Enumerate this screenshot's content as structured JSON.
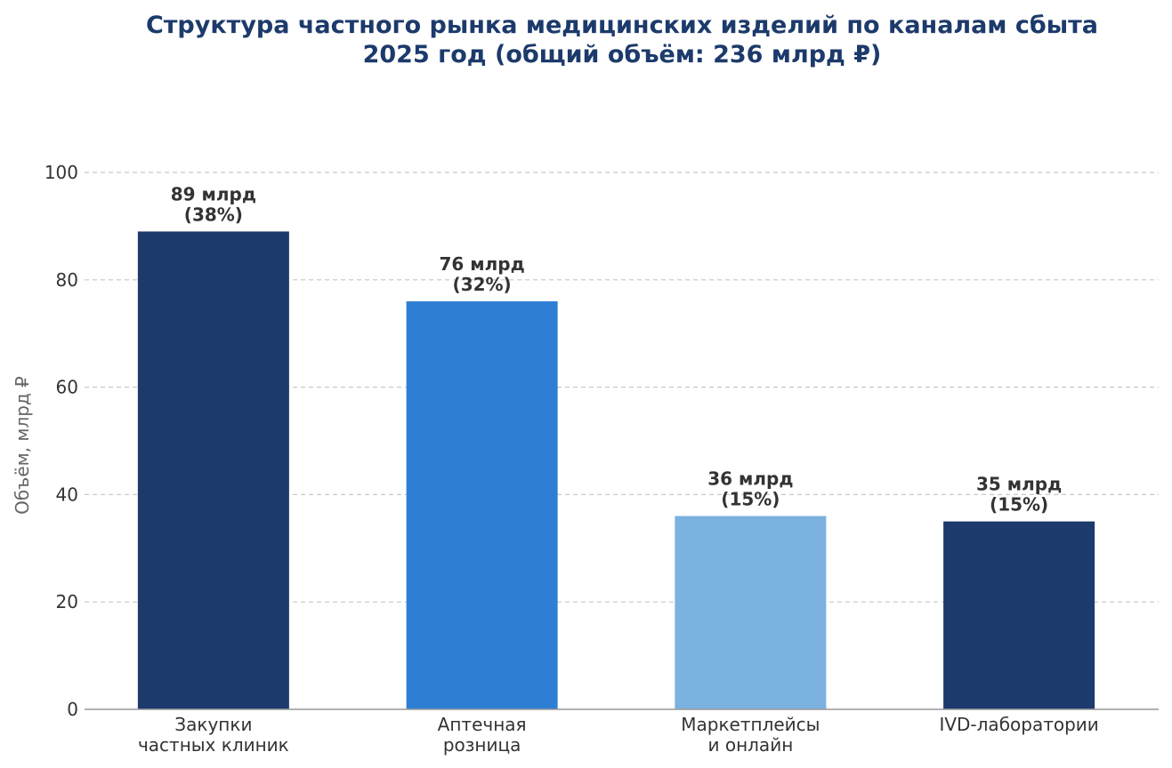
{
  "chart_data": {
    "type": "bar",
    "title_lines": [
      "Структура частного рынка медицинских изделий по каналам сбыта",
      "2025 год (общий объём: 236 млрд ₽)"
    ],
    "ylabel": "Объём, млрд ₽",
    "xlabel": "",
    "ylim": [
      0,
      100
    ],
    "yticks": [
      0,
      20,
      40,
      60,
      80,
      100
    ],
    "grid": true,
    "categories": [
      [
        "Закупки",
        "частных клиник"
      ],
      [
        "Аптечная",
        "розница"
      ],
      [
        "Маркетплейсы",
        "и онлайн"
      ],
      [
        "IVD-лаборатории"
      ]
    ],
    "values": [
      89,
      76,
      36,
      35
    ],
    "data_labels": [
      [
        "89 млрд",
        "(38%)"
      ],
      [
        "76 млрд",
        "(32%)"
      ],
      [
        "36 млрд",
        "(15%)"
      ],
      [
        "35 млрд",
        "(15%)"
      ]
    ],
    "colors": [
      "#1c3a6b",
      "#2e7fd3",
      "#7ab1df",
      "#1c3a6b"
    ]
  }
}
